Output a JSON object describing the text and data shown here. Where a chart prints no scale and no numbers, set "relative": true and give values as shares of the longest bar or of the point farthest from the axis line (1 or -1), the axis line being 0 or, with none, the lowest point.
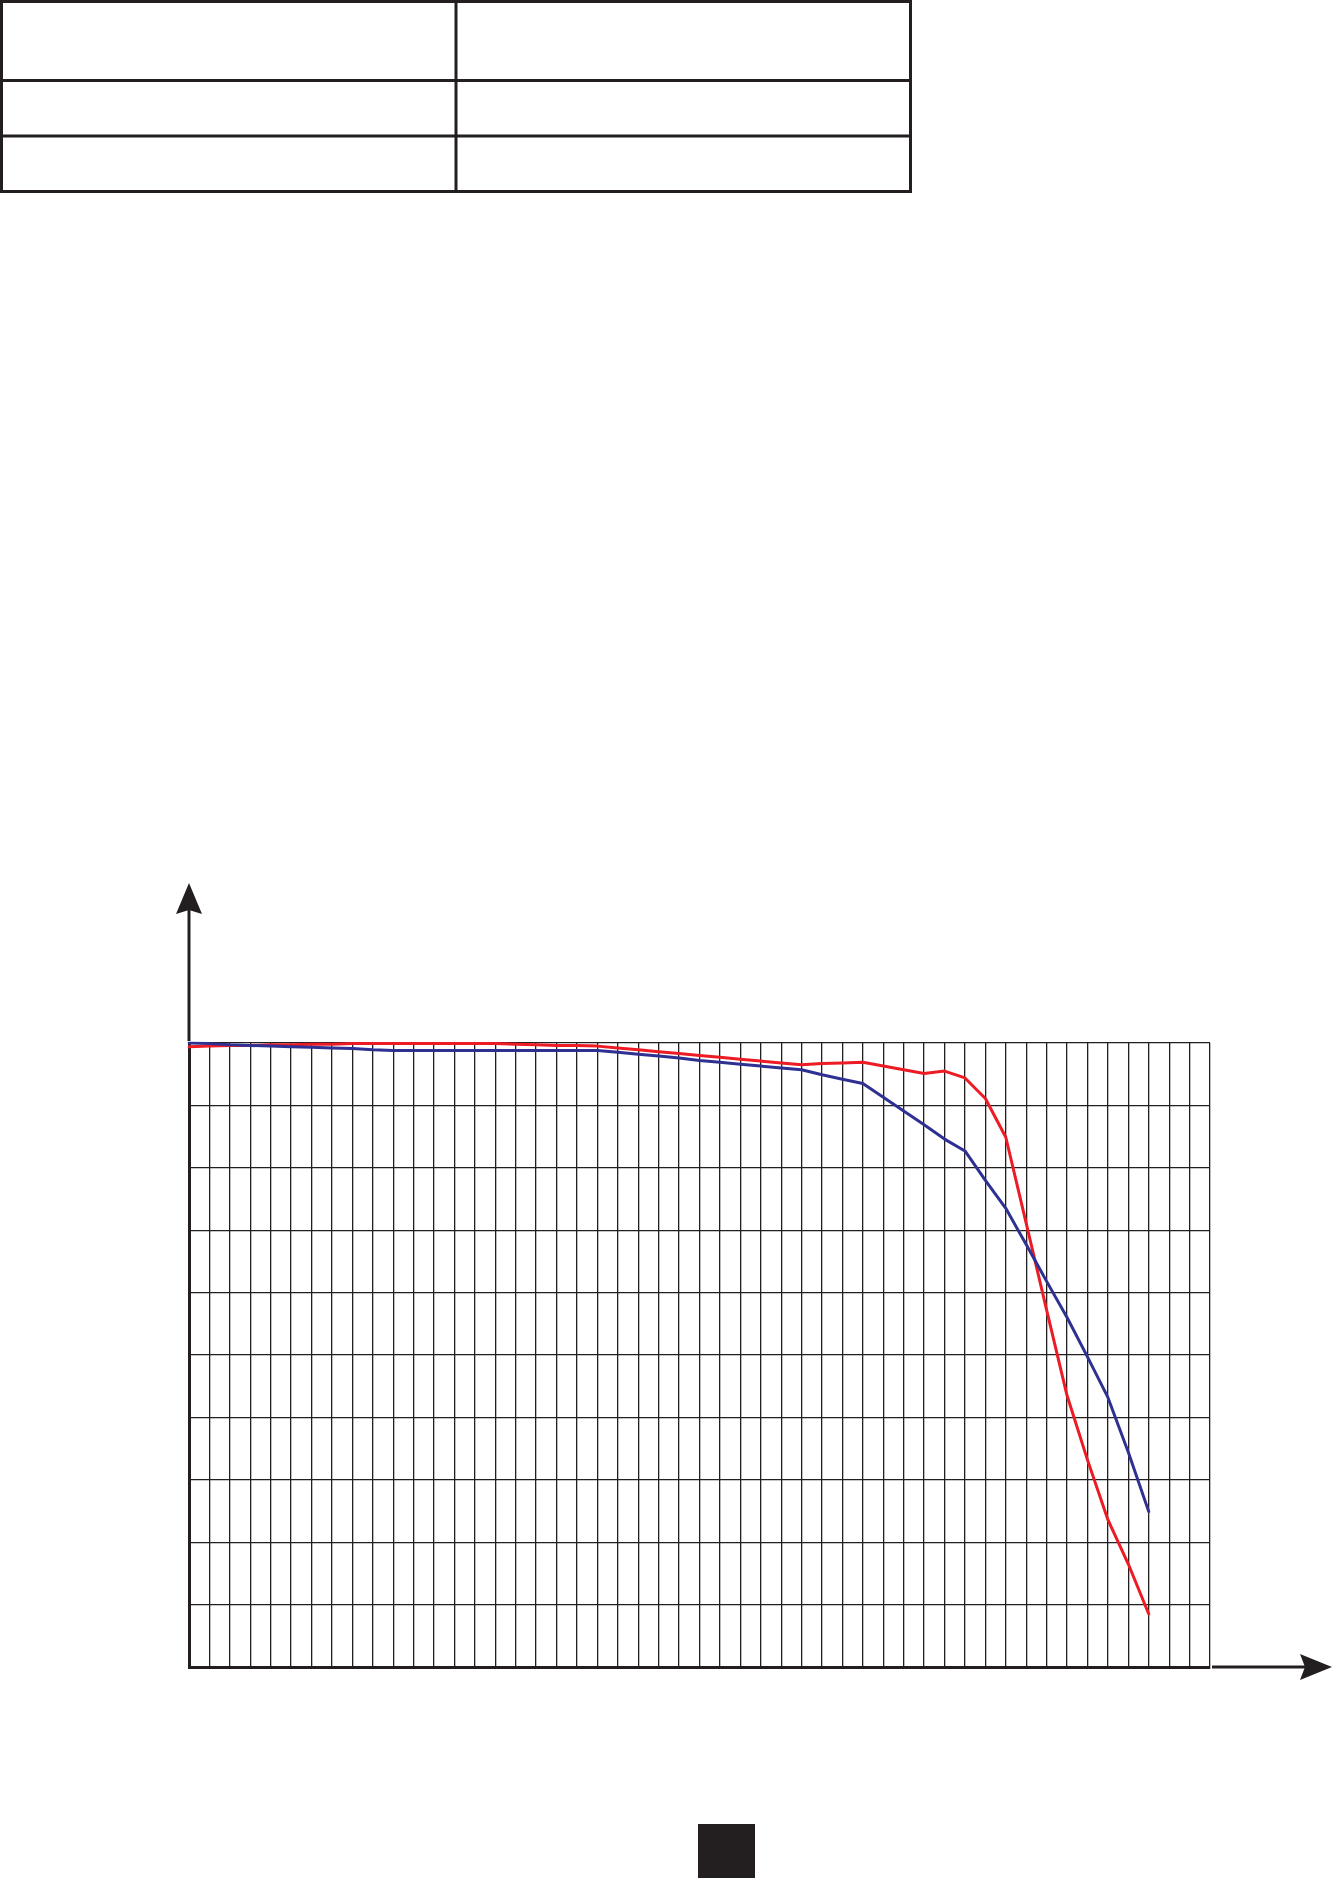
{
  "chart_data": {
    "type": "line",
    "relative": true,
    "categories": [
      null,
      null,
      null,
      null,
      null,
      null,
      null,
      null,
      null,
      null,
      null,
      null,
      null,
      null,
      null,
      null,
      null,
      null,
      null,
      null,
      null,
      null,
      null,
      null,
      null,
      null,
      null,
      null,
      null,
      null,
      null,
      null,
      null,
      null,
      null,
      null,
      null,
      null,
      null,
      null,
      null,
      null,
      null,
      null,
      null,
      null,
      null,
      null,
      null,
      null,
      null
    ],
    "series": [
      {
        "color": "#2e3192",
        "values": [
          1,
          0.999,
          0.997,
          0.996,
          0.995,
          0.994,
          0.993,
          0.992,
          0.991,
          0.989,
          0.988,
          0.988,
          0.988,
          0.988,
          0.988,
          0.988,
          0.988,
          0.988,
          0.988,
          0.988,
          0.988,
          0.985,
          0.982,
          0.979,
          0.976,
          0.972,
          0.969,
          0.966,
          0.963,
          0.96,
          0.957,
          0.949,
          0.942,
          0.935,
          0.913,
          0.891,
          0.869,
          0.846,
          0.827,
          0.78,
          0.735,
          0.677,
          0.618,
          0.56,
          0.497,
          0.432,
          0.344,
          0.249,
          null,
          null,
          null
        ]
      },
      {
        "color": "#ed1c24",
        "values": [
          0.994,
          0.995,
          0.996,
          0.996,
          0.997,
          0.997,
          0.998,
          0.998,
          0.999,
          0.999,
          0.999,
          0.999,
          0.999,
          0.999,
          0.999,
          0.999,
          0.998,
          0.997,
          0.996,
          0.996,
          0.995,
          0.992,
          0.989,
          0.986,
          0.983,
          0.98,
          0.977,
          0.974,
          0.971,
          0.968,
          0.965,
          0.967,
          0.968,
          0.969,
          0.963,
          0.957,
          0.951,
          0.955,
          0.944,
          0.911,
          0.849,
          0.711,
          0.572,
          0.435,
          0.332,
          0.236,
          0.165,
          0.085,
          null,
          null,
          null
        ]
      }
    ],
    "grid": true,
    "tick_labels": false,
    "marker": "none",
    "line_style": "solid"
  }
}
